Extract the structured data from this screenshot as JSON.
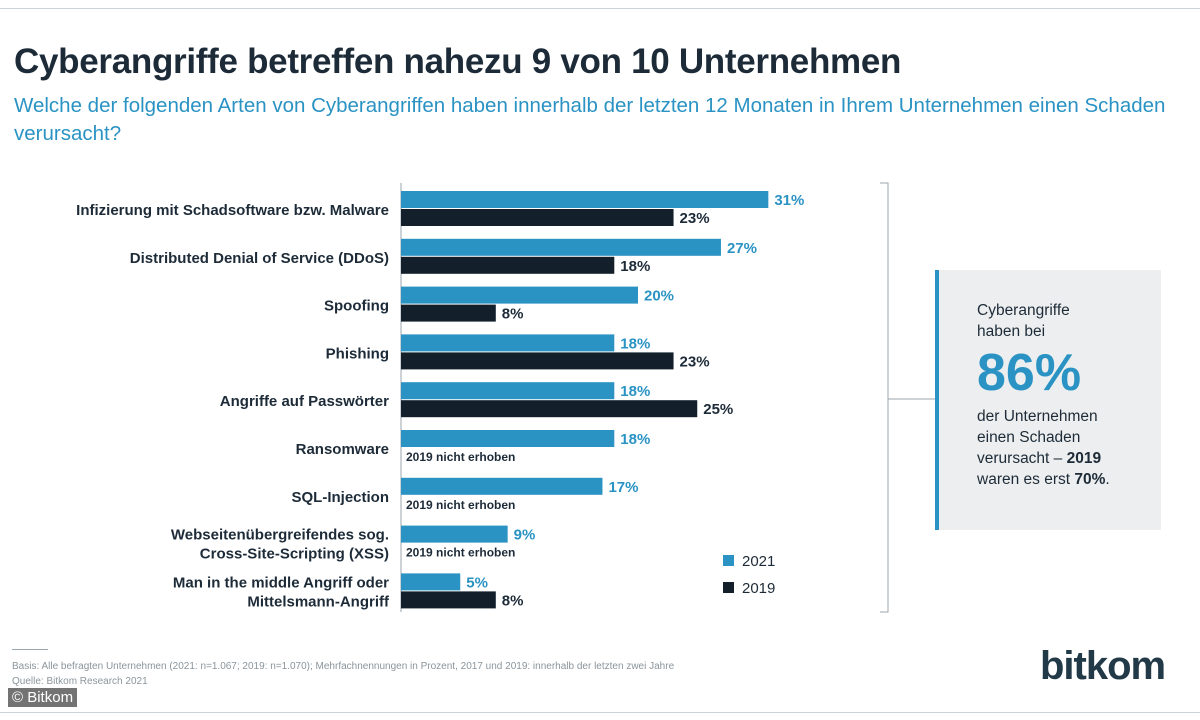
{
  "header": {
    "title": "Cyberangriffe betreffen nahezu 9 von 10 Unternehmen",
    "subtitle": "Welche der folgenden Arten von Cyberangriffen haben innerhalb der letzten 12 Monaten in Ihrem Unternehmen einen Schaden verursacht?"
  },
  "colors": {
    "y2021": "#2a93c3",
    "y2019": "#13202b",
    "callout_bg": "#eceeef"
  },
  "chart_data": {
    "type": "bar",
    "orientation": "horizontal",
    "unit": "%",
    "categories": [
      [
        "Infizierung mit Schadsoftware bzw. Malware"
      ],
      [
        "Distributed Denial of Service (DDoS)"
      ],
      [
        "Spoofing"
      ],
      [
        "Phishing"
      ],
      [
        "Angriffe auf Passwörter"
      ],
      [
        "Ransomware"
      ],
      [
        "SQL-Injection"
      ],
      [
        "Webseitenübergreifendes sog.",
        "Cross-Site-Scripting (XSS)"
      ],
      [
        "Man in the middle Angriff oder",
        "Mittelsmann-Angriff"
      ]
    ],
    "series": [
      {
        "name": "2021",
        "values": [
          31,
          27,
          20,
          18,
          18,
          18,
          17,
          9,
          5
        ]
      },
      {
        "name": "2019",
        "values": [
          23,
          18,
          8,
          23,
          25,
          null,
          null,
          null,
          8
        ]
      }
    ],
    "not_collected_label": "2019 nicht erhoben",
    "legend": [
      "2021",
      "2019"
    ],
    "legend_position": "bottom-right"
  },
  "callout": {
    "line1": "Cyberangriffe",
    "line2": "haben bei",
    "big_value": "86%",
    "line3": "der Unternehmen",
    "line4": "einen Schaden",
    "line5_prefix": "verursacht – ",
    "line5_bold": "2019",
    "line6_prefix": "waren es erst ",
    "line6_bold": "70%",
    "line6_suffix": "."
  },
  "footer": {
    "basis": "Basis: Alle befragten Unternehmen (2021: n=1.067; 2019: n=1.070); Mehrfachnennungen in Prozent, 2017 und 2019: innerhalb der letzten zwei Jahre",
    "source": "Quelle: Bitkom Research 2021",
    "copyright": "© Bitkom",
    "logo": "bitkom"
  }
}
